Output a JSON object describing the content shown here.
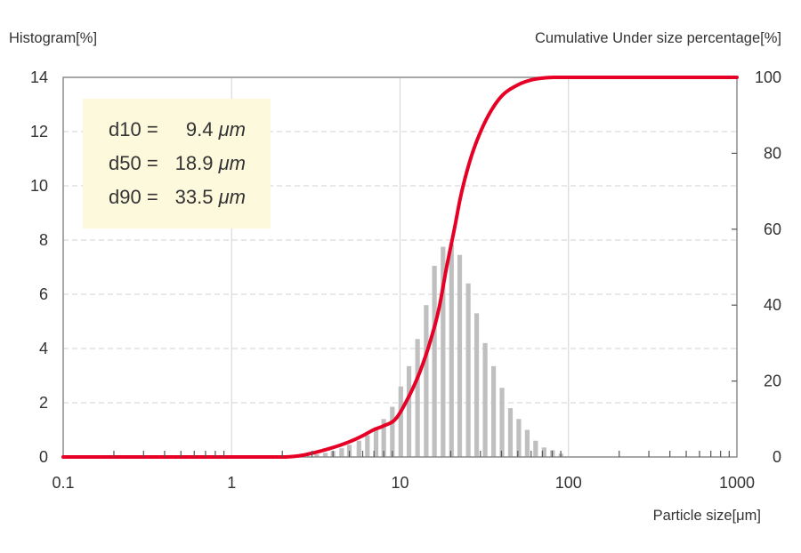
{
  "chart_data": {
    "type": "bar",
    "x_scale": "log",
    "xlim": [
      0.1,
      1000
    ],
    "ylim_left": [
      0,
      14
    ],
    "ylim_right": [
      0,
      100
    ],
    "left_axis_title": "Histogram[%]",
    "right_axis_title": "Cumulative Under size percentage[%]",
    "xlabel": "Particle size[μm]",
    "x_ticks": [
      "0.1",
      "1",
      "10",
      "100",
      "1000"
    ],
    "y_ticks_left": [
      "0",
      "2",
      "4",
      "6",
      "8",
      "10",
      "12",
      "14"
    ],
    "y_ticks_right": [
      "0",
      "20",
      "40",
      "60",
      "80",
      "100"
    ],
    "grid": true,
    "histogram": {
      "x": [
        2.2,
        2.5,
        2.8,
        3.2,
        3.6,
        4.0,
        4.5,
        5.0,
        5.7,
        6.4,
        7.2,
        8.0,
        9.0,
        10.1,
        11.3,
        12.7,
        14.3,
        16.0,
        18.0,
        20.2,
        22.6,
        25.4,
        28.5,
        32.0,
        35.9,
        40.3,
        45.2,
        50.7,
        56.9,
        63.8,
        71.6,
        80.4,
        90.2
      ],
      "values": [
        0.02,
        0.04,
        0.07,
        0.1,
        0.15,
        0.22,
        0.32,
        0.45,
        0.6,
        0.8,
        1.05,
        1.4,
        1.85,
        2.6,
        3.35,
        4.35,
        5.6,
        7.05,
        7.75,
        7.85,
        7.45,
        6.4,
        5.3,
        4.2,
        3.35,
        2.55,
        1.8,
        1.4,
        1.0,
        0.6,
        0.35,
        0.25,
        0.12
      ]
    },
    "cumulative": {
      "x": [
        0.1,
        2.0,
        2.5,
        3.0,
        4.0,
        5.0,
        6.0,
        7.0,
        8.0,
        9.4,
        11.0,
        13.0,
        15.0,
        17.0,
        18.9,
        21.0,
        23.0,
        26.0,
        29.0,
        33.5,
        40.0,
        50.0,
        60.0,
        70.0,
        85.0,
        100.0,
        1000.0
      ],
      "values": [
        0,
        0,
        0.3,
        1.0,
        2.5,
        4.0,
        5.6,
        7.2,
        8.2,
        10,
        15,
        22,
        30,
        39,
        50,
        60,
        69,
        78,
        84,
        90,
        95,
        98,
        99.3,
        99.8,
        100,
        100,
        100
      ]
    },
    "curve_color": "#e60026",
    "bar_color": "#bfbfbf"
  },
  "stats_box": {
    "lines": [
      {
        "label": "d10 =",
        "value": "9.4",
        "unit": "μm"
      },
      {
        "label": "d50 =",
        "value": "18.9",
        "unit": "μm"
      },
      {
        "label": "d90 =",
        "value": "33.5",
        "unit": "μm"
      }
    ],
    "background": "#fdf9dc"
  }
}
